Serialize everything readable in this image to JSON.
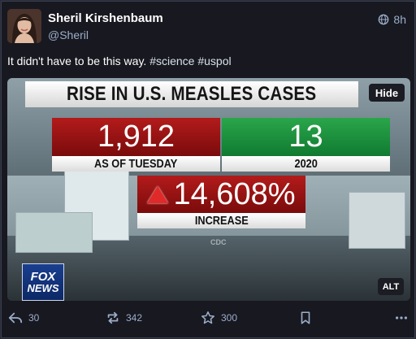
{
  "status": {
    "author": {
      "display_name": "Sheril Kirshenbaum",
      "handle": "@Sheril",
      "avatar_icon": "person-avatar"
    },
    "visibility_icon": "globe-icon",
    "time": "8h",
    "text_prefix": "It didn't have to be this way.",
    "hashtags": [
      "#science",
      "#uspol"
    ]
  },
  "media": {
    "hide_label": "Hide",
    "alt_label": "ALT",
    "headline": "RISE IN U.S. MEASLES CASES",
    "stat_left": {
      "value": "1,912",
      "label": "AS OF TUESDAY",
      "color": "#9c1515"
    },
    "stat_right": {
      "value": "13",
      "label": "2020",
      "color": "#1f9440"
    },
    "stat_increase": {
      "value": "14,608%",
      "label": "INCREASE",
      "color": "#9c1515"
    },
    "logo_line1": "FOX",
    "logo_line2": "NEWS",
    "watermark": "CDC"
  },
  "actions": {
    "reply": {
      "icon": "reply-icon",
      "count": "30"
    },
    "boost": {
      "icon": "boost-icon",
      "count": "342"
    },
    "favourite": {
      "icon": "star-icon",
      "count": "300"
    },
    "bookmark": {
      "icon": "bookmark-icon"
    },
    "more": {
      "icon": "more-icon"
    }
  },
  "colors": {
    "background": "#181821",
    "secondary_text": "#9baec8"
  }
}
